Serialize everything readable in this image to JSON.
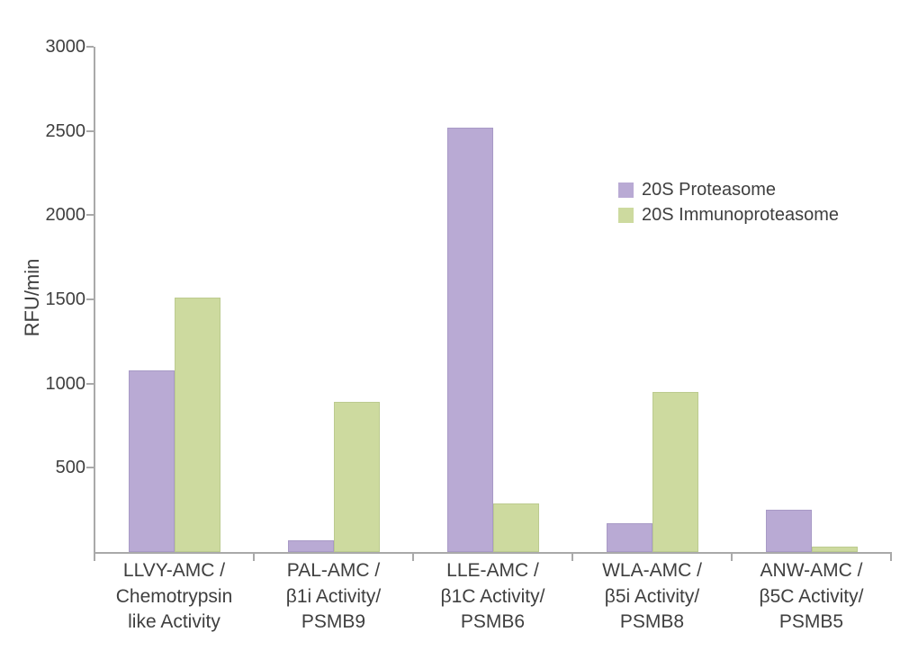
{
  "chart_data": {
    "type": "bar",
    "title": "",
    "ylabel": "RFU/min",
    "xlabel": "",
    "ylim": [
      0,
      3000
    ],
    "yticks": [
      500,
      1000,
      1500,
      2000,
      2500,
      3000
    ],
    "grid": false,
    "legend_position": "upper-right",
    "axis_color": "#a9a9a9",
    "text_color": "#3f3f3f",
    "categories": [
      "LLVY-AMC / Chemotrypsin like Activity",
      "PAL-AMC / β1i Activity/ PSMB9",
      "LLE-AMC / β1C Activity/ PSMB6",
      "WLA-AMC / β5i Activity/ PSMB8",
      "ANW-AMC / β5C Activity/ PSMB5"
    ],
    "category_lines": [
      [
        "LLVY-AMC /",
        "Chemotrypsin",
        "like Activity"
      ],
      [
        "PAL-AMC /",
        "β1i Activity/",
        "PSMB9"
      ],
      [
        "LLE-AMC /",
        "β1C Activity/",
        "PSMB6"
      ],
      [
        "WLA-AMC /",
        "β5i Activity/",
        "PSMB8"
      ],
      [
        "ANW-AMC /",
        "β5C Activity/",
        "PSMB5"
      ]
    ],
    "series": [
      {
        "name": "20S Proteasome",
        "color": "#b9aad4",
        "border_color": "#a89ac6",
        "values": [
          1080,
          70,
          2520,
          170,
          250
        ]
      },
      {
        "name": "20S Immunoproteasome",
        "color": "#cdda9f",
        "border_color": "#bccb8f",
        "values": [
          1510,
          890,
          290,
          950,
          30
        ]
      }
    ]
  }
}
